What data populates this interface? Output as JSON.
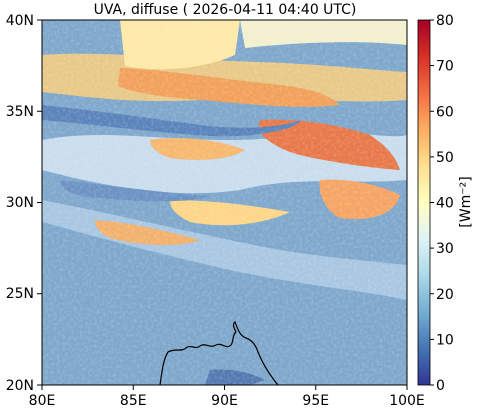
{
  "title": "UVA, diffuse ( 2026-04-11 04:40 UTC)",
  "map": {
    "x_ticks": [
      "80E",
      "85E",
      "90E",
      "95E",
      "100E"
    ],
    "y_ticks": [
      "40N",
      "35N",
      "30N",
      "25N",
      "20N"
    ],
    "lon_range": [
      80,
      100
    ],
    "lat_range": [
      20,
      40
    ]
  },
  "colorbar": {
    "label": "[Wm⁻²]",
    "ticks": [
      "80",
      "70",
      "60",
      "50",
      "40",
      "30",
      "20",
      "10",
      "0"
    ],
    "range": [
      0,
      80
    ],
    "colors": [
      "#313695",
      "#4575b4",
      "#74add1",
      "#abd9e9",
      "#e0f3f8",
      "#ffffbf",
      "#fee090",
      "#fdae61",
      "#f46d43",
      "#d73027",
      "#a50026"
    ]
  }
}
